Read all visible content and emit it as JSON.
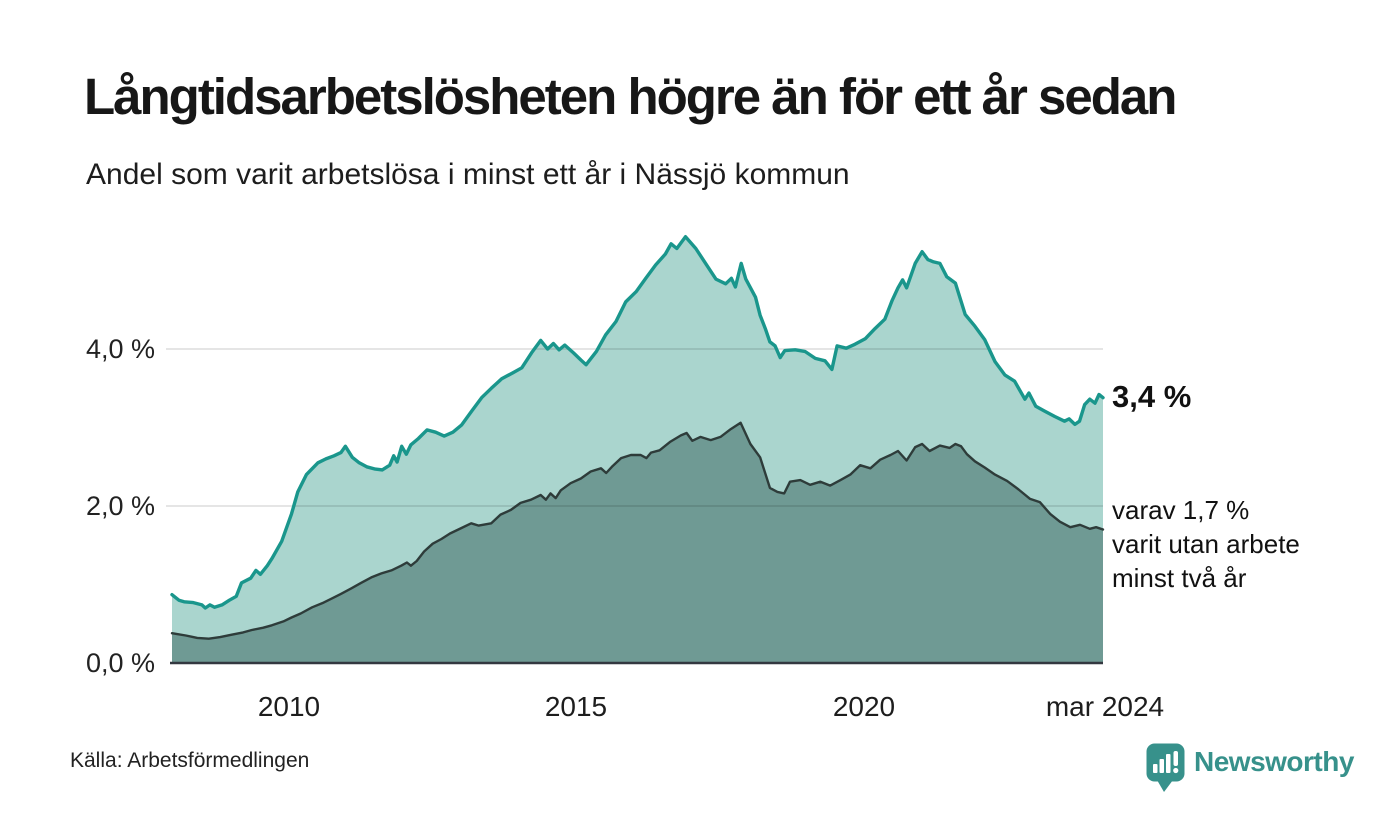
{
  "header": {
    "title": "Långtidsarbetslösheten högre än för ett år sedan",
    "subtitle": "Andel som varit arbetslösa i minst ett år i Nässjö kommun"
  },
  "annotations": {
    "value_label": "3,4 %",
    "caption_lines": [
      "varav 1,7 %",
      "varit utan arbete",
      "minst två år"
    ]
  },
  "footer": {
    "source": "Källa: Arbetsförmedlingen",
    "logo_text": "Newsworthy"
  },
  "colors": {
    "series1_line": "#1a968c",
    "series1_fill": "#aad5ce",
    "series2_line": "#2e3c3a",
    "series2_fill": "#6f9a94",
    "gridline": "rgba(0,0,0,0.10)",
    "axis": "#333840",
    "logo_teal": "#37918b"
  },
  "chart_data": {
    "type": "area",
    "title": "Långtidsarbetslösheten högre än för ett år sedan",
    "subtitle": "Andel som varit arbetslösa i minst ett år i Nässjö kommun",
    "unit": "%",
    "x_range": [
      2007.96,
      2024.17
    ],
    "y_range": [
      0,
      5.6
    ],
    "grid": "horizontal",
    "legend": "none",
    "x_ticks": [
      {
        "label": "2010",
        "t": 2010
      },
      {
        "label": "2015",
        "t": 2015
      },
      {
        "label": "2020",
        "t": 2020
      },
      {
        "label": "mar 2024",
        "t": 2024.17
      }
    ],
    "y_ticks": [
      {
        "label": "4,0 %",
        "v": 4
      },
      {
        "label": "2,0 %",
        "v": 2
      },
      {
        "label": "0,0 %",
        "v": 0
      }
    ],
    "series": [
      {
        "name": "Andel som varit arbetslösa minst ett år",
        "end_value": 3.4,
        "end_label": "3,4 %",
        "points": [
          [
            2007.96,
            0.87
          ],
          [
            2008.08,
            0.8
          ],
          [
            2008.17,
            0.78
          ],
          [
            2008.33,
            0.77
          ],
          [
            2008.48,
            0.74
          ],
          [
            2008.54,
            0.7
          ],
          [
            2008.62,
            0.74
          ],
          [
            2008.7,
            0.71
          ],
          [
            2008.83,
            0.74
          ],
          [
            2008.96,
            0.8
          ],
          [
            2009.08,
            0.85
          ],
          [
            2009.17,
            1.02
          ],
          [
            2009.33,
            1.08
          ],
          [
            2009.42,
            1.18
          ],
          [
            2009.5,
            1.13
          ],
          [
            2009.62,
            1.24
          ],
          [
            2009.7,
            1.33
          ],
          [
            2009.87,
            1.55
          ],
          [
            2010.04,
            1.9
          ],
          [
            2010.15,
            2.18
          ],
          [
            2010.3,
            2.4
          ],
          [
            2010.5,
            2.55
          ],
          [
            2010.64,
            2.6
          ],
          [
            2010.78,
            2.64
          ],
          [
            2010.9,
            2.68
          ],
          [
            2010.98,
            2.76
          ],
          [
            2011.1,
            2.62
          ],
          [
            2011.22,
            2.55
          ],
          [
            2011.35,
            2.5
          ],
          [
            2011.5,
            2.47
          ],
          [
            2011.62,
            2.46
          ],
          [
            2011.75,
            2.52
          ],
          [
            2011.82,
            2.64
          ],
          [
            2011.88,
            2.56
          ],
          [
            2011.96,
            2.76
          ],
          [
            2012.04,
            2.66
          ],
          [
            2012.12,
            2.78
          ],
          [
            2012.25,
            2.86
          ],
          [
            2012.4,
            2.97
          ],
          [
            2012.55,
            2.94
          ],
          [
            2012.7,
            2.89
          ],
          [
            2012.85,
            2.94
          ],
          [
            2013.0,
            3.03
          ],
          [
            2013.17,
            3.2
          ],
          [
            2013.35,
            3.38
          ],
          [
            2013.52,
            3.5
          ],
          [
            2013.7,
            3.62
          ],
          [
            2013.9,
            3.7
          ],
          [
            2014.05,
            3.76
          ],
          [
            2014.22,
            3.95
          ],
          [
            2014.38,
            4.11
          ],
          [
            2014.5,
            4.0
          ],
          [
            2014.6,
            4.07
          ],
          [
            2014.7,
            3.99
          ],
          [
            2014.8,
            4.05
          ],
          [
            2014.95,
            3.95
          ],
          [
            2015.08,
            3.86
          ],
          [
            2015.17,
            3.8
          ],
          [
            2015.35,
            3.97
          ],
          [
            2015.51,
            4.18
          ],
          [
            2015.69,
            4.35
          ],
          [
            2015.86,
            4.6
          ],
          [
            2016.04,
            4.73
          ],
          [
            2016.21,
            4.9
          ],
          [
            2016.38,
            5.07
          ],
          [
            2016.55,
            5.21
          ],
          [
            2016.65,
            5.34
          ],
          [
            2016.75,
            5.28
          ],
          [
            2016.9,
            5.43
          ],
          [
            2017.08,
            5.28
          ],
          [
            2017.25,
            5.09
          ],
          [
            2017.43,
            4.89
          ],
          [
            2017.6,
            4.83
          ],
          [
            2017.7,
            4.9
          ],
          [
            2017.77,
            4.79
          ],
          [
            2017.87,
            5.09
          ],
          [
            2017.95,
            4.89
          ],
          [
            2018.12,
            4.66
          ],
          [
            2018.2,
            4.43
          ],
          [
            2018.29,
            4.26
          ],
          [
            2018.37,
            4.09
          ],
          [
            2018.46,
            4.04
          ],
          [
            2018.55,
            3.89
          ],
          [
            2018.63,
            3.98
          ],
          [
            2018.81,
            3.99
          ],
          [
            2018.98,
            3.97
          ],
          [
            2019.16,
            3.88
          ],
          [
            2019.33,
            3.85
          ],
          [
            2019.45,
            3.74
          ],
          [
            2019.54,
            4.04
          ],
          [
            2019.7,
            4.01
          ],
          [
            2019.85,
            4.06
          ],
          [
            2020.03,
            4.13
          ],
          [
            2020.2,
            4.26
          ],
          [
            2020.37,
            4.38
          ],
          [
            2020.5,
            4.62
          ],
          [
            2020.6,
            4.78
          ],
          [
            2020.68,
            4.88
          ],
          [
            2020.75,
            4.78
          ],
          [
            2020.9,
            5.09
          ],
          [
            2021.02,
            5.24
          ],
          [
            2021.12,
            5.14
          ],
          [
            2021.22,
            5.11
          ],
          [
            2021.33,
            5.09
          ],
          [
            2021.45,
            4.92
          ],
          [
            2021.6,
            4.84
          ],
          [
            2021.77,
            4.44
          ],
          [
            2021.94,
            4.29
          ],
          [
            2022.11,
            4.12
          ],
          [
            2022.29,
            3.84
          ],
          [
            2022.46,
            3.67
          ],
          [
            2022.63,
            3.59
          ],
          [
            2022.81,
            3.36
          ],
          [
            2022.88,
            3.44
          ],
          [
            2023.0,
            3.27
          ],
          [
            2023.15,
            3.21
          ],
          [
            2023.33,
            3.14
          ],
          [
            2023.5,
            3.08
          ],
          [
            2023.58,
            3.11
          ],
          [
            2023.68,
            3.04
          ],
          [
            2023.76,
            3.08
          ],
          [
            2023.85,
            3.29
          ],
          [
            2023.94,
            3.36
          ],
          [
            2024.03,
            3.31
          ],
          [
            2024.1,
            3.42
          ],
          [
            2024.17,
            3.38
          ]
        ]
      },
      {
        "name": "varav utan arbete minst två år",
        "end_value": 1.7,
        "end_label": "varav 1,7 % varit utan arbete minst två år",
        "points": [
          [
            2007.96,
            0.38
          ],
          [
            2008.2,
            0.35
          ],
          [
            2008.4,
            0.32
          ],
          [
            2008.6,
            0.31
          ],
          [
            2008.8,
            0.33
          ],
          [
            2009.0,
            0.36
          ],
          [
            2009.2,
            0.39
          ],
          [
            2009.35,
            0.42
          ],
          [
            2009.55,
            0.45
          ],
          [
            2009.7,
            0.48
          ],
          [
            2009.9,
            0.53
          ],
          [
            2010.04,
            0.58
          ],
          [
            2010.2,
            0.63
          ],
          [
            2010.4,
            0.71
          ],
          [
            2010.6,
            0.77
          ],
          [
            2010.74,
            0.82
          ],
          [
            2010.9,
            0.88
          ],
          [
            2011.08,
            0.95
          ],
          [
            2011.25,
            1.02
          ],
          [
            2011.43,
            1.09
          ],
          [
            2011.6,
            1.14
          ],
          [
            2011.78,
            1.18
          ],
          [
            2011.95,
            1.24
          ],
          [
            2012.05,
            1.28
          ],
          [
            2012.12,
            1.24
          ],
          [
            2012.22,
            1.3
          ],
          [
            2012.35,
            1.42
          ],
          [
            2012.5,
            1.52
          ],
          [
            2012.65,
            1.58
          ],
          [
            2012.8,
            1.65
          ],
          [
            2013.0,
            1.72
          ],
          [
            2013.17,
            1.78
          ],
          [
            2013.3,
            1.75
          ],
          [
            2013.52,
            1.78
          ],
          [
            2013.68,
            1.89
          ],
          [
            2013.86,
            1.95
          ],
          [
            2014.03,
            2.04
          ],
          [
            2014.21,
            2.08
          ],
          [
            2014.38,
            2.14
          ],
          [
            2014.47,
            2.08
          ],
          [
            2014.55,
            2.16
          ],
          [
            2014.64,
            2.1
          ],
          [
            2014.73,
            2.2
          ],
          [
            2014.9,
            2.29
          ],
          [
            2015.08,
            2.35
          ],
          [
            2015.25,
            2.44
          ],
          [
            2015.43,
            2.48
          ],
          [
            2015.52,
            2.42
          ],
          [
            2015.62,
            2.5
          ],
          [
            2015.78,
            2.61
          ],
          [
            2015.95,
            2.65
          ],
          [
            2016.12,
            2.65
          ],
          [
            2016.22,
            2.61
          ],
          [
            2016.3,
            2.68
          ],
          [
            2016.45,
            2.71
          ],
          [
            2016.64,
            2.82
          ],
          [
            2016.82,
            2.9
          ],
          [
            2016.92,
            2.93
          ],
          [
            2017.02,
            2.83
          ],
          [
            2017.16,
            2.88
          ],
          [
            2017.34,
            2.84
          ],
          [
            2017.51,
            2.88
          ],
          [
            2017.69,
            2.98
          ],
          [
            2017.86,
            3.06
          ],
          [
            2018.03,
            2.79
          ],
          [
            2018.2,
            2.62
          ],
          [
            2018.37,
            2.23
          ],
          [
            2018.5,
            2.18
          ],
          [
            2018.62,
            2.16
          ],
          [
            2018.72,
            2.31
          ],
          [
            2018.9,
            2.33
          ],
          [
            2019.07,
            2.27
          ],
          [
            2019.25,
            2.31
          ],
          [
            2019.42,
            2.26
          ],
          [
            2019.6,
            2.33
          ],
          [
            2019.77,
            2.4
          ],
          [
            2019.94,
            2.52
          ],
          [
            2020.12,
            2.48
          ],
          [
            2020.29,
            2.59
          ],
          [
            2020.47,
            2.65
          ],
          [
            2020.6,
            2.7
          ],
          [
            2020.75,
            2.58
          ],
          [
            2020.9,
            2.75
          ],
          [
            2021.02,
            2.79
          ],
          [
            2021.15,
            2.7
          ],
          [
            2021.33,
            2.77
          ],
          [
            2021.5,
            2.74
          ],
          [
            2021.6,
            2.79
          ],
          [
            2021.7,
            2.76
          ],
          [
            2021.8,
            2.66
          ],
          [
            2021.94,
            2.57
          ],
          [
            2022.11,
            2.49
          ],
          [
            2022.29,
            2.4
          ],
          [
            2022.5,
            2.32
          ],
          [
            2022.7,
            2.21
          ],
          [
            2022.9,
            2.09
          ],
          [
            2023.07,
            2.05
          ],
          [
            2023.25,
            1.9
          ],
          [
            2023.42,
            1.8
          ],
          [
            2023.6,
            1.73
          ],
          [
            2023.77,
            1.76
          ],
          [
            2023.94,
            1.71
          ],
          [
            2024.05,
            1.73
          ],
          [
            2024.17,
            1.7
          ]
        ]
      }
    ]
  }
}
